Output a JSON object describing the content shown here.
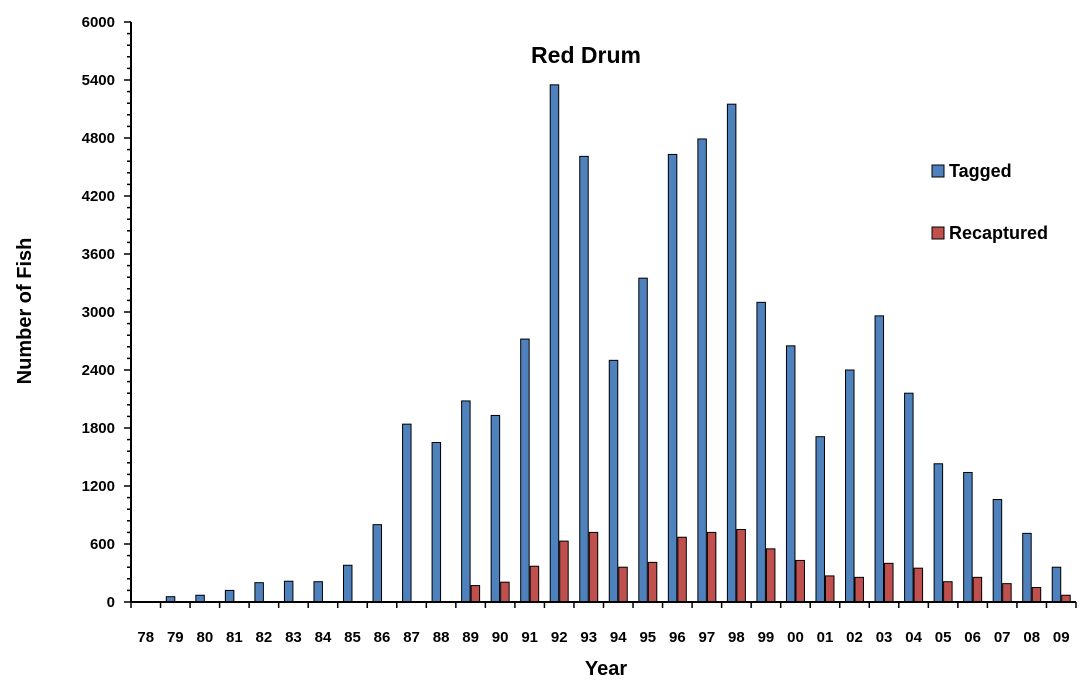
{
  "chart_data": {
    "type": "bar",
    "title": "Red Drum",
    "xlabel": "Year",
    "ylabel": "Number of Fish",
    "ylim": [
      0,
      6000
    ],
    "yticks": [
      "0",
      "600",
      "1200",
      "1800",
      "2400",
      "3000",
      "3600",
      "4200",
      "4800",
      "5400",
      "6000"
    ],
    "grid": false,
    "legend_position": "right",
    "categories": [
      "78",
      "79",
      "80",
      "81",
      "82",
      "83",
      "84",
      "85",
      "86",
      "87",
      "88",
      "89",
      "90",
      "91",
      "92",
      "93",
      "94",
      "95",
      "96",
      "97",
      "98",
      "99",
      "00",
      "01",
      "02",
      "03",
      "04",
      "05",
      "06",
      "07",
      "08",
      "09"
    ],
    "series": [
      {
        "name": "Tagged",
        "color": "#4F81BD",
        "values": [
          5,
          55,
          70,
          120,
          200,
          215,
          210,
          380,
          800,
          1840,
          1650,
          2080,
          1930,
          2720,
          5350,
          4610,
          2500,
          3350,
          4630,
          4790,
          5150,
          3100,
          2650,
          1710,
          2400,
          2960,
          2160,
          1430,
          1340,
          1060,
          710,
          360
        ]
      },
      {
        "name": "Recaptured",
        "color": "#C0504D",
        "values": [
          0,
          0,
          0,
          0,
          0,
          0,
          0,
          0,
          0,
          0,
          5,
          170,
          205,
          370,
          630,
          720,
          360,
          410,
          670,
          720,
          750,
          550,
          430,
          270,
          255,
          400,
          350,
          210,
          255,
          190,
          150,
          70
        ]
      }
    ]
  }
}
